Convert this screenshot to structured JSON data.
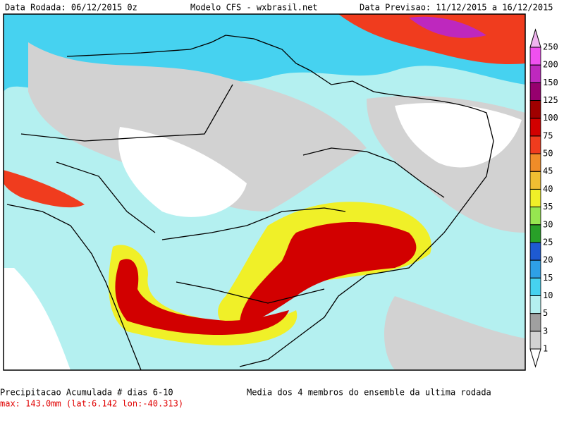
{
  "header": {
    "left": "Data Rodada: 06/12/2015 0z",
    "center": "Modelo CFS - wxbrasil.net",
    "right": "Data Previsao: 11/12/2015 a 16/12/2015"
  },
  "colorbar": {
    "levels": [
      1,
      3,
      5,
      10,
      15,
      20,
      25,
      30,
      35,
      40,
      45,
      50,
      75,
      100,
      125,
      150,
      200,
      250
    ],
    "colors": [
      "#d2d2d2",
      "#a0a0a0",
      "#b4f0f0",
      "#46d2f0",
      "#2ea0e6",
      "#1e5ad2",
      "#28a028",
      "#96e650",
      "#f0f028",
      "#f0be32",
      "#f08c28",
      "#f03c1e",
      "#d20000",
      "#a00000",
      "#96006e",
      "#be28be",
      "#f050f0"
    ],
    "under_color": "#ffffff",
    "over_color": "#f0b4f0"
  },
  "footer": {
    "title": "Precipitacao Acumulada # dias 6-10",
    "max": "max: 143.0mm (lat:6.142 lon:-40.313)",
    "subtitle": "Media dos 4 membros do ensemble da ultima rodada"
  }
}
